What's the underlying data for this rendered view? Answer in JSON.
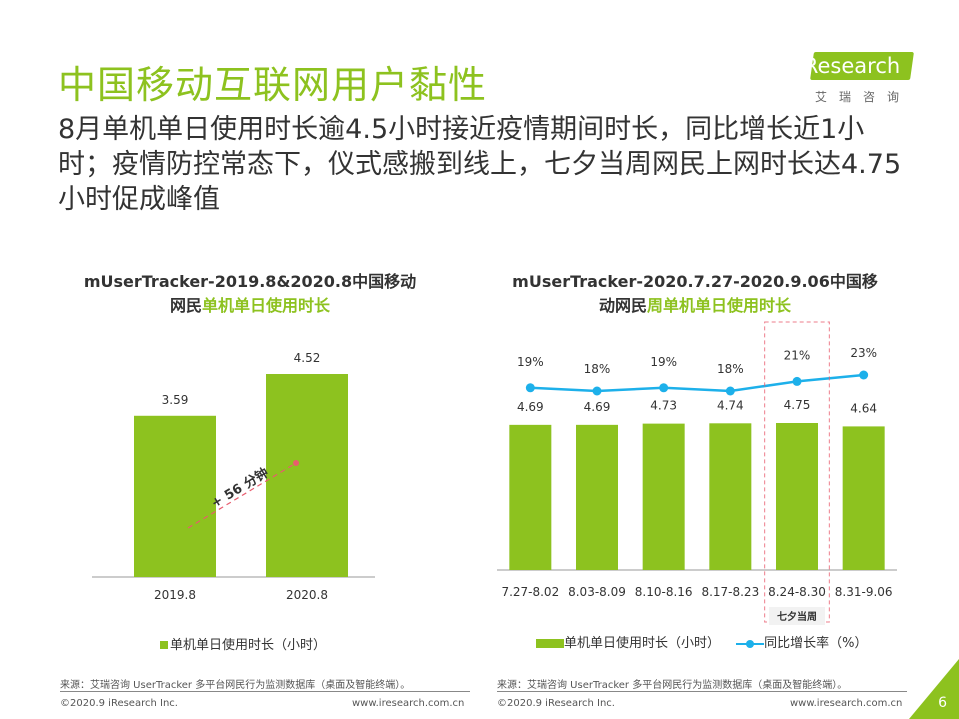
{
  "header": {
    "title": "中国移动互联网用户黏性",
    "subtitle": "8月单机单日使用时长逾4.5小时接近疫情期间时长，同比增长近1小时；疫情防控常态下，仪式感搬到线上，七夕当周网民上网时长达4.75小时促成峰值"
  },
  "logo": {
    "prefix": "i",
    "name": "Research",
    "cn": "艾瑞咨询"
  },
  "colors": {
    "brand": "#8dc21f",
    "line": "#1db0ea",
    "annotation": "#e85c6e"
  },
  "left_chart": {
    "title_line1": "mUserTracker-2019.8&2020.8中国移动",
    "title_line2_dark": "网民",
    "title_line2_green": "单机单日使用时长",
    "annotation": "+ 56 分钟",
    "legend": "单机单日使用时长（小时）"
  },
  "right_chart": {
    "title_line1": "mUserTracker-2020.7.27-2020.9.06中国移",
    "title_line2_dark": "动网民",
    "title_line2_green": "周单机单日使用时长",
    "highlight_label": "七夕当周",
    "legend_bar": "单机单日使用时长（小时）",
    "legend_line": "同比增长率（%）"
  },
  "chart_data": [
    {
      "type": "bar",
      "categories": [
        "2019.8",
        "2020.8"
      ],
      "values": [
        3.59,
        4.52
      ],
      "title": "mUserTracker-2019.8&2020.8中国移动网民单机单日使用时长",
      "series_name": "单机单日使用时长（小时）",
      "ylim": [
        0,
        5.5
      ]
    },
    {
      "type": "bar",
      "categories": [
        "7.27-8.02",
        "8.03-8.09",
        "8.10-8.16",
        "8.17-8.23",
        "8.24-8.30",
        "8.31-9.06"
      ],
      "series": [
        {
          "name": "单机单日使用时长（小时）",
          "values": [
            4.69,
            4.69,
            4.73,
            4.74,
            4.75,
            4.64
          ],
          "type": "bar"
        },
        {
          "name": "同比增长率（%）",
          "values": [
            19,
            18,
            19,
            18,
            21,
            23
          ],
          "labels": [
            "19%",
            "18%",
            "19%",
            "18%",
            "21%",
            "23%"
          ],
          "type": "line"
        }
      ],
      "title": "mUserTracker-2020.7.27-2020.9.06中国移动网民周单机单日使用时长",
      "highlight_category": "8.24-8.30"
    }
  ],
  "footer": {
    "left_source": "来源：艾瑞咨询 UserTracker 多平台网民行为监测数据库（桌面及智能终端）。",
    "right_source": "来源：艾瑞咨询 UserTracker 多平台网民行为监测数据库（桌面及智能终端）。",
    "left_copyright": "©2020.9 iResearch Inc.",
    "left_url": "www.iresearch.com.cn",
    "right_copyright": "©2020.9 iResearch Inc.",
    "right_url": "www.iresearch.com.cn",
    "page_number": "6"
  }
}
